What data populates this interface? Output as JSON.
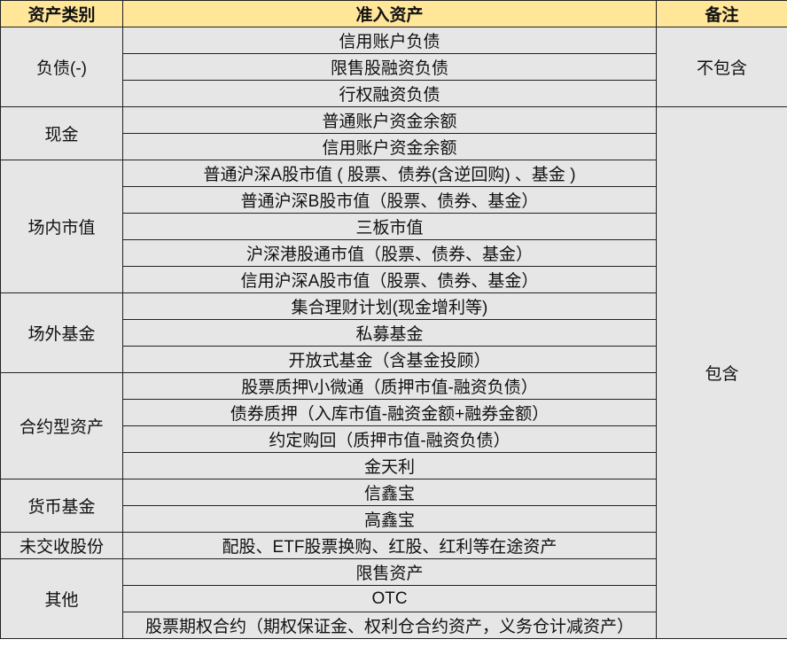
{
  "header": {
    "category": "资产类别",
    "assets": "准入资产",
    "note": "备注"
  },
  "colors": {
    "header_bg": "#ffe699",
    "body_bg": "#e7e6e6",
    "border": "#222222"
  },
  "groups": [
    {
      "category": "负债(-)",
      "items": [
        "信用账户负债",
        "限售股融资负债",
        "行权融资负债"
      ]
    },
    {
      "category": "现金",
      "items": [
        "普通账户资金余额",
        "信用账户资金余额"
      ]
    },
    {
      "category": "场内市值",
      "items": [
        "普通沪深A股市值 ( 股票、债券(含逆回购) 、基金 )",
        "普通沪深B股市值（股票、债券、基金）",
        "三板市值",
        "沪深港股通市值（股票、债券、基金）",
        "信用沪深A股市值（股票、债券、基金）"
      ]
    },
    {
      "category": "场外基金",
      "items": [
        "集合理财计划(现金增利等)",
        "私募基金",
        "开放式基金（含基金投顾）"
      ]
    },
    {
      "category": "合约型资产",
      "items": [
        "股票质押\\小微通（质押市值-融资负债）",
        "债券质押（入库市值-融资金额+融券金额）",
        "约定购回（质押市值-融资负债）",
        "金天利"
      ]
    },
    {
      "category": "货币基金",
      "items": [
        "信鑫宝",
        "高鑫宝"
      ]
    },
    {
      "category": "未交收股份",
      "items": [
        "配股、ETF股票换购、红股、红利等在途资产"
      ]
    },
    {
      "category": "其他",
      "items": [
        "限售资产",
        "OTC",
        "股票期权合约（期权保证金、权利仓合约资产，义务仓计减资产）"
      ]
    }
  ],
  "notes": [
    {
      "label": "不包含",
      "span_groups": 1
    },
    {
      "label": "包含",
      "span_groups": 7
    }
  ]
}
